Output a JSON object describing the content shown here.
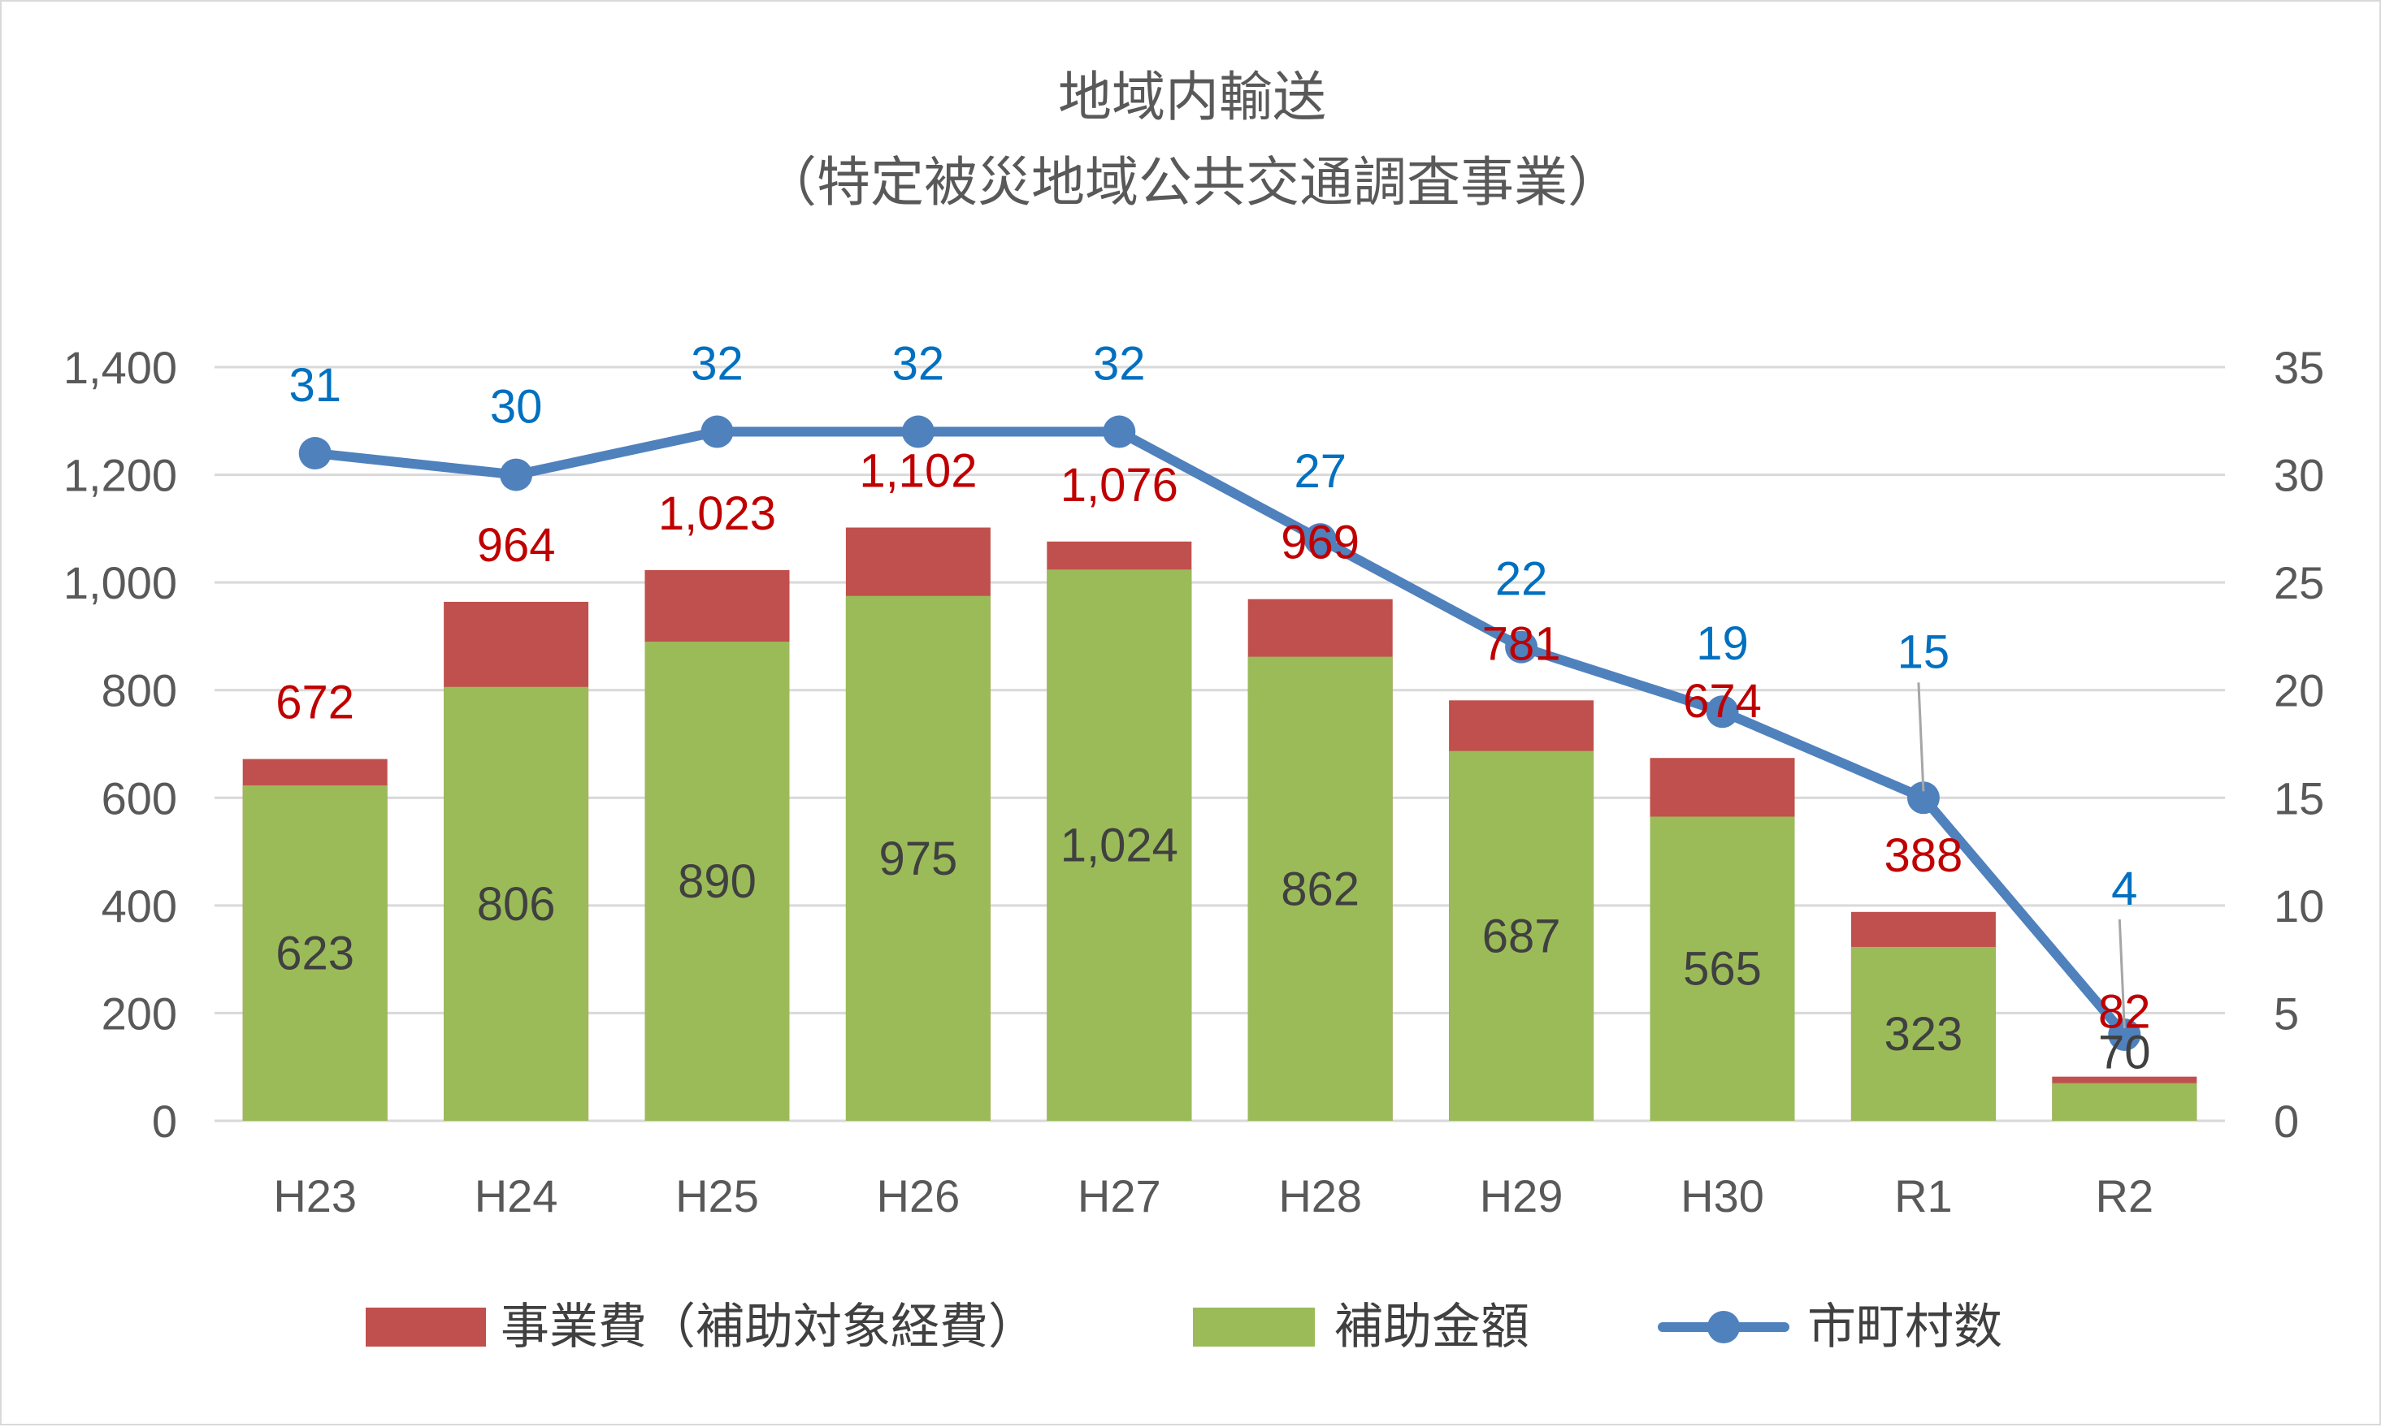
{
  "chart_data": {
    "type": "bar",
    "title": "地域内輸送",
    "subtitle": "（特定被災地域公共交通調査事業）",
    "categories": [
      "H23",
      "H24",
      "H25",
      "H26",
      "H27",
      "H28",
      "H29",
      "H30",
      "R1",
      "R2"
    ],
    "series": [
      {
        "name": "事業費（補助対象経費）",
        "kind": "bar-total",
        "color": "#c0504d",
        "values": [
          672,
          964,
          1023,
          1102,
          1076,
          969,
          781,
          674,
          388,
          82
        ],
        "labels": [
          "672",
          "964",
          "1,023",
          "1,102",
          "1,076",
          "969",
          "781",
          "674",
          "388",
          "82"
        ]
      },
      {
        "name": "補助金額",
        "kind": "bar-inner",
        "color": "#9bbb59",
        "values": [
          623,
          806,
          890,
          975,
          1024,
          862,
          687,
          565,
          323,
          70
        ],
        "labels": [
          "623",
          "806",
          "890",
          "975",
          "1,024",
          "862",
          "687",
          "565",
          "323",
          "70"
        ]
      },
      {
        "name": "市町村数",
        "kind": "line",
        "axis": "right",
        "color": "#4f81bd",
        "values": [
          31,
          30,
          32,
          32,
          32,
          27,
          22,
          19,
          15,
          4
        ],
        "labels": [
          "31",
          "30",
          "32",
          "32",
          "32",
          "27",
          "22",
          "19",
          "15",
          "4"
        ]
      }
    ],
    "y_left": {
      "ylim": [
        0,
        1400
      ],
      "ticks": [
        0,
        200,
        400,
        600,
        800,
        1000,
        1200,
        1400
      ],
      "tick_labels": [
        "0",
        "200",
        "400",
        "600",
        "800",
        "1,000",
        "1,200",
        "1,400"
      ]
    },
    "y_right": {
      "ylim": [
        0,
        35
      ],
      "ticks": [
        0,
        5,
        10,
        15,
        20,
        25,
        30,
        35
      ],
      "tick_labels": [
        "0",
        "5",
        "10",
        "15",
        "20",
        "25",
        "30",
        "35"
      ]
    },
    "grid": true,
    "legend": "bottom"
  }
}
